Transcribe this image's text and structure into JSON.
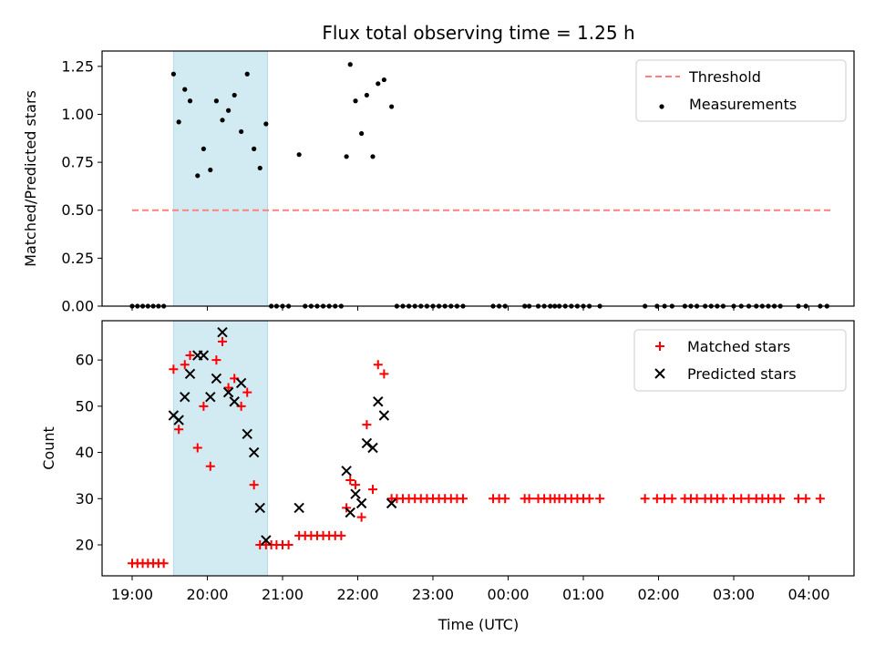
{
  "chart_data": [
    {
      "type": "scatter",
      "title": "Flux total observing time = 1.25 h",
      "ylabel": "Matched/Predicted stars",
      "xlabel": "",
      "x_unit": "hours since 19:00 UTC",
      "xlim": [
        -0.4,
        9.6
      ],
      "ylim": [
        0.0,
        1.33
      ],
      "yticks": [
        0.0,
        0.25,
        0.5,
        0.75,
        1.0,
        1.25
      ],
      "ytick_labels": [
        "0.00",
        "0.25",
        "0.50",
        "0.75",
        "1.00",
        "1.25"
      ],
      "xticks": [
        0,
        1,
        2,
        3,
        4,
        5,
        6,
        7,
        8,
        9
      ],
      "xtick_labels": [
        "19:00",
        "20:00",
        "21:00",
        "22:00",
        "23:00",
        "00:00",
        "01:00",
        "02:00",
        "03:00",
        "04:00"
      ],
      "shaded_span": {
        "x": [
          0.55,
          1.8
        ],
        "color": "#add8e6"
      },
      "legend": {
        "position": "top-right",
        "entries": [
          "Threshold",
          "Measurements"
        ]
      },
      "series": [
        {
          "name": "Threshold",
          "style": "dashed-line",
          "color": "#ff8080",
          "x": [
            0.0,
            9.3
          ],
          "y": [
            0.5,
            0.5
          ]
        },
        {
          "name": "Measurements",
          "style": "dot",
          "color": "#000000",
          "points": [
            [
              0.0,
              0
            ],
            [
              0.07,
              0
            ],
            [
              0.14,
              0
            ],
            [
              0.21,
              0
            ],
            [
              0.28,
              0
            ],
            [
              0.35,
              0
            ],
            [
              0.42,
              0
            ],
            [
              0.55,
              1.21
            ],
            [
              0.62,
              0.96
            ],
            [
              0.7,
              1.13
            ],
            [
              0.77,
              1.07
            ],
            [
              0.87,
              0.68
            ],
            [
              0.95,
              0.82
            ],
            [
              1.04,
              0.71
            ],
            [
              1.12,
              1.07
            ],
            [
              1.2,
              0.97
            ],
            [
              1.28,
              1.02
            ],
            [
              1.36,
              1.1
            ],
            [
              1.45,
              0.91
            ],
            [
              1.53,
              1.21
            ],
            [
              1.62,
              0.82
            ],
            [
              1.7,
              0.72
            ],
            [
              1.78,
              0.95
            ],
            [
              1.85,
              0
            ],
            [
              1.92,
              0
            ],
            [
              2.0,
              0
            ],
            [
              2.08,
              0
            ],
            [
              2.22,
              0.79
            ],
            [
              2.3,
              0
            ],
            [
              2.38,
              0
            ],
            [
              2.46,
              0
            ],
            [
              2.54,
              0
            ],
            [
              2.62,
              0
            ],
            [
              2.7,
              0
            ],
            [
              2.78,
              0
            ],
            [
              2.85,
              0.78
            ],
            [
              2.9,
              1.26
            ],
            [
              2.97,
              1.07
            ],
            [
              3.05,
              0.9
            ],
            [
              3.12,
              1.1
            ],
            [
              3.2,
              0.78
            ],
            [
              3.27,
              1.16
            ],
            [
              3.35,
              1.18
            ],
            [
              3.45,
              1.04
            ],
            [
              3.52,
              0
            ],
            [
              3.6,
              0
            ],
            [
              3.68,
              0
            ],
            [
              3.76,
              0
            ],
            [
              3.84,
              0
            ],
            [
              3.92,
              0
            ],
            [
              4.0,
              0
            ],
            [
              4.08,
              0
            ],
            [
              4.16,
              0
            ],
            [
              4.24,
              0
            ],
            [
              4.32,
              0
            ],
            [
              4.4,
              0
            ],
            [
              4.8,
              0
            ],
            [
              4.88,
              0
            ],
            [
              4.96,
              0
            ],
            [
              5.22,
              0
            ],
            [
              5.28,
              0
            ],
            [
              5.4,
              0
            ],
            [
              5.48,
              0
            ],
            [
              5.56,
              0
            ],
            [
              5.62,
              0
            ],
            [
              5.68,
              0
            ],
            [
              5.76,
              0
            ],
            [
              5.84,
              0
            ],
            [
              5.92,
              0
            ],
            [
              6.0,
              0
            ],
            [
              6.08,
              0
            ],
            [
              6.22,
              0
            ],
            [
              6.82,
              0
            ],
            [
              6.98,
              0
            ],
            [
              7.08,
              0
            ],
            [
              7.18,
              0
            ],
            [
              7.35,
              0
            ],
            [
              7.43,
              0
            ],
            [
              7.51,
              0
            ],
            [
              7.62,
              0
            ],
            [
              7.7,
              0
            ],
            [
              7.78,
              0
            ],
            [
              7.86,
              0
            ],
            [
              8.0,
              0
            ],
            [
              8.1,
              0
            ],
            [
              8.2,
              0
            ],
            [
              8.3,
              0
            ],
            [
              8.38,
              0
            ],
            [
              8.46,
              0
            ],
            [
              8.54,
              0
            ],
            [
              8.62,
              0
            ],
            [
              8.86,
              0
            ],
            [
              8.96,
              0
            ],
            [
              9.15,
              0
            ],
            [
              9.24,
              0
            ]
          ]
        }
      ]
    },
    {
      "type": "scatter",
      "title": "",
      "ylabel": "Count",
      "xlabel": "Time (UTC)",
      "x_unit": "hours since 19:00 UTC",
      "xlim": [
        -0.4,
        9.6
      ],
      "ylim": [
        13.3,
        68.5
      ],
      "yticks": [
        20,
        30,
        40,
        50,
        60
      ],
      "ytick_labels": [
        "20",
        "30",
        "40",
        "50",
        "60"
      ],
      "xticks": [
        0,
        1,
        2,
        3,
        4,
        5,
        6,
        7,
        8,
        9
      ],
      "xtick_labels": [
        "19:00",
        "20:00",
        "21:00",
        "22:00",
        "23:00",
        "00:00",
        "01:00",
        "02:00",
        "03:00",
        "04:00"
      ],
      "shaded_span": {
        "x": [
          0.55,
          1.8
        ],
        "color": "#add8e6"
      },
      "legend": {
        "position": "top-right",
        "entries": [
          "Matched stars",
          "Predicted stars"
        ]
      },
      "series": [
        {
          "name": "Matched stars",
          "style": "plus",
          "color": "#ff0000",
          "points": [
            [
              0.0,
              16
            ],
            [
              0.07,
              16
            ],
            [
              0.14,
              16
            ],
            [
              0.21,
              16
            ],
            [
              0.28,
              16
            ],
            [
              0.35,
              16
            ],
            [
              0.42,
              16
            ],
            [
              0.55,
              58
            ],
            [
              0.62,
              45
            ],
            [
              0.7,
              59
            ],
            [
              0.77,
              61
            ],
            [
              0.87,
              41
            ],
            [
              0.95,
              50
            ],
            [
              1.04,
              37
            ],
            [
              1.12,
              60
            ],
            [
              1.2,
              64
            ],
            [
              1.28,
              54
            ],
            [
              1.36,
              56
            ],
            [
              1.45,
              50
            ],
            [
              1.53,
              53
            ],
            [
              1.62,
              33
            ],
            [
              1.7,
              20
            ],
            [
              1.78,
              20
            ],
            [
              1.85,
              20
            ],
            [
              1.92,
              20
            ],
            [
              2.0,
              20
            ],
            [
              2.08,
              20
            ],
            [
              2.22,
              22
            ],
            [
              2.3,
              22
            ],
            [
              2.38,
              22
            ],
            [
              2.46,
              22
            ],
            [
              2.54,
              22
            ],
            [
              2.62,
              22
            ],
            [
              2.7,
              22
            ],
            [
              2.78,
              22
            ],
            [
              2.85,
              28
            ],
            [
              2.9,
              34
            ],
            [
              2.97,
              33
            ],
            [
              3.05,
              26
            ],
            [
              3.12,
              46
            ],
            [
              3.2,
              32
            ],
            [
              3.27,
              59
            ],
            [
              3.35,
              57
            ],
            [
              3.45,
              30
            ],
            [
              3.52,
              30
            ],
            [
              3.6,
              30
            ],
            [
              3.68,
              30
            ],
            [
              3.76,
              30
            ],
            [
              3.84,
              30
            ],
            [
              3.92,
              30
            ],
            [
              4.0,
              30
            ],
            [
              4.08,
              30
            ],
            [
              4.16,
              30
            ],
            [
              4.24,
              30
            ],
            [
              4.32,
              30
            ],
            [
              4.4,
              30
            ],
            [
              4.8,
              30
            ],
            [
              4.88,
              30
            ],
            [
              4.96,
              30
            ],
            [
              5.22,
              30
            ],
            [
              5.28,
              30
            ],
            [
              5.4,
              30
            ],
            [
              5.48,
              30
            ],
            [
              5.56,
              30
            ],
            [
              5.62,
              30
            ],
            [
              5.68,
              30
            ],
            [
              5.76,
              30
            ],
            [
              5.84,
              30
            ],
            [
              5.92,
              30
            ],
            [
              6.0,
              30
            ],
            [
              6.08,
              30
            ],
            [
              6.22,
              30
            ],
            [
              6.82,
              30
            ],
            [
              6.98,
              30
            ],
            [
              7.08,
              30
            ],
            [
              7.18,
              30
            ],
            [
              7.35,
              30
            ],
            [
              7.43,
              30
            ],
            [
              7.51,
              30
            ],
            [
              7.62,
              30
            ],
            [
              7.7,
              30
            ],
            [
              7.78,
              30
            ],
            [
              7.86,
              30
            ],
            [
              8.0,
              30
            ],
            [
              8.1,
              30
            ],
            [
              8.2,
              30
            ],
            [
              8.3,
              30
            ],
            [
              8.38,
              30
            ],
            [
              8.46,
              30
            ],
            [
              8.54,
              30
            ],
            [
              8.62,
              30
            ],
            [
              8.86,
              30
            ],
            [
              8.96,
              30
            ],
            [
              9.15,
              30
            ]
          ]
        },
        {
          "name": "Predicted stars",
          "style": "cross",
          "color": "#000000",
          "points": [
            [
              0.55,
              48
            ],
            [
              0.62,
              47
            ],
            [
              0.7,
              52
            ],
            [
              0.77,
              57
            ],
            [
              0.87,
              61
            ],
            [
              0.95,
              61
            ],
            [
              1.04,
              52
            ],
            [
              1.12,
              56
            ],
            [
              1.2,
              66
            ],
            [
              1.28,
              53
            ],
            [
              1.36,
              51
            ],
            [
              1.45,
              55
            ],
            [
              1.53,
              44
            ],
            [
              1.62,
              40
            ],
            [
              1.7,
              28
            ],
            [
              1.78,
              21
            ],
            [
              2.22,
              28
            ],
            [
              2.85,
              36
            ],
            [
              2.9,
              27
            ],
            [
              2.97,
              31
            ],
            [
              3.05,
              29
            ],
            [
              3.12,
              42
            ],
            [
              3.2,
              41
            ],
            [
              3.27,
              51
            ],
            [
              3.35,
              48
            ],
            [
              3.45,
              29
            ]
          ]
        }
      ]
    }
  ]
}
